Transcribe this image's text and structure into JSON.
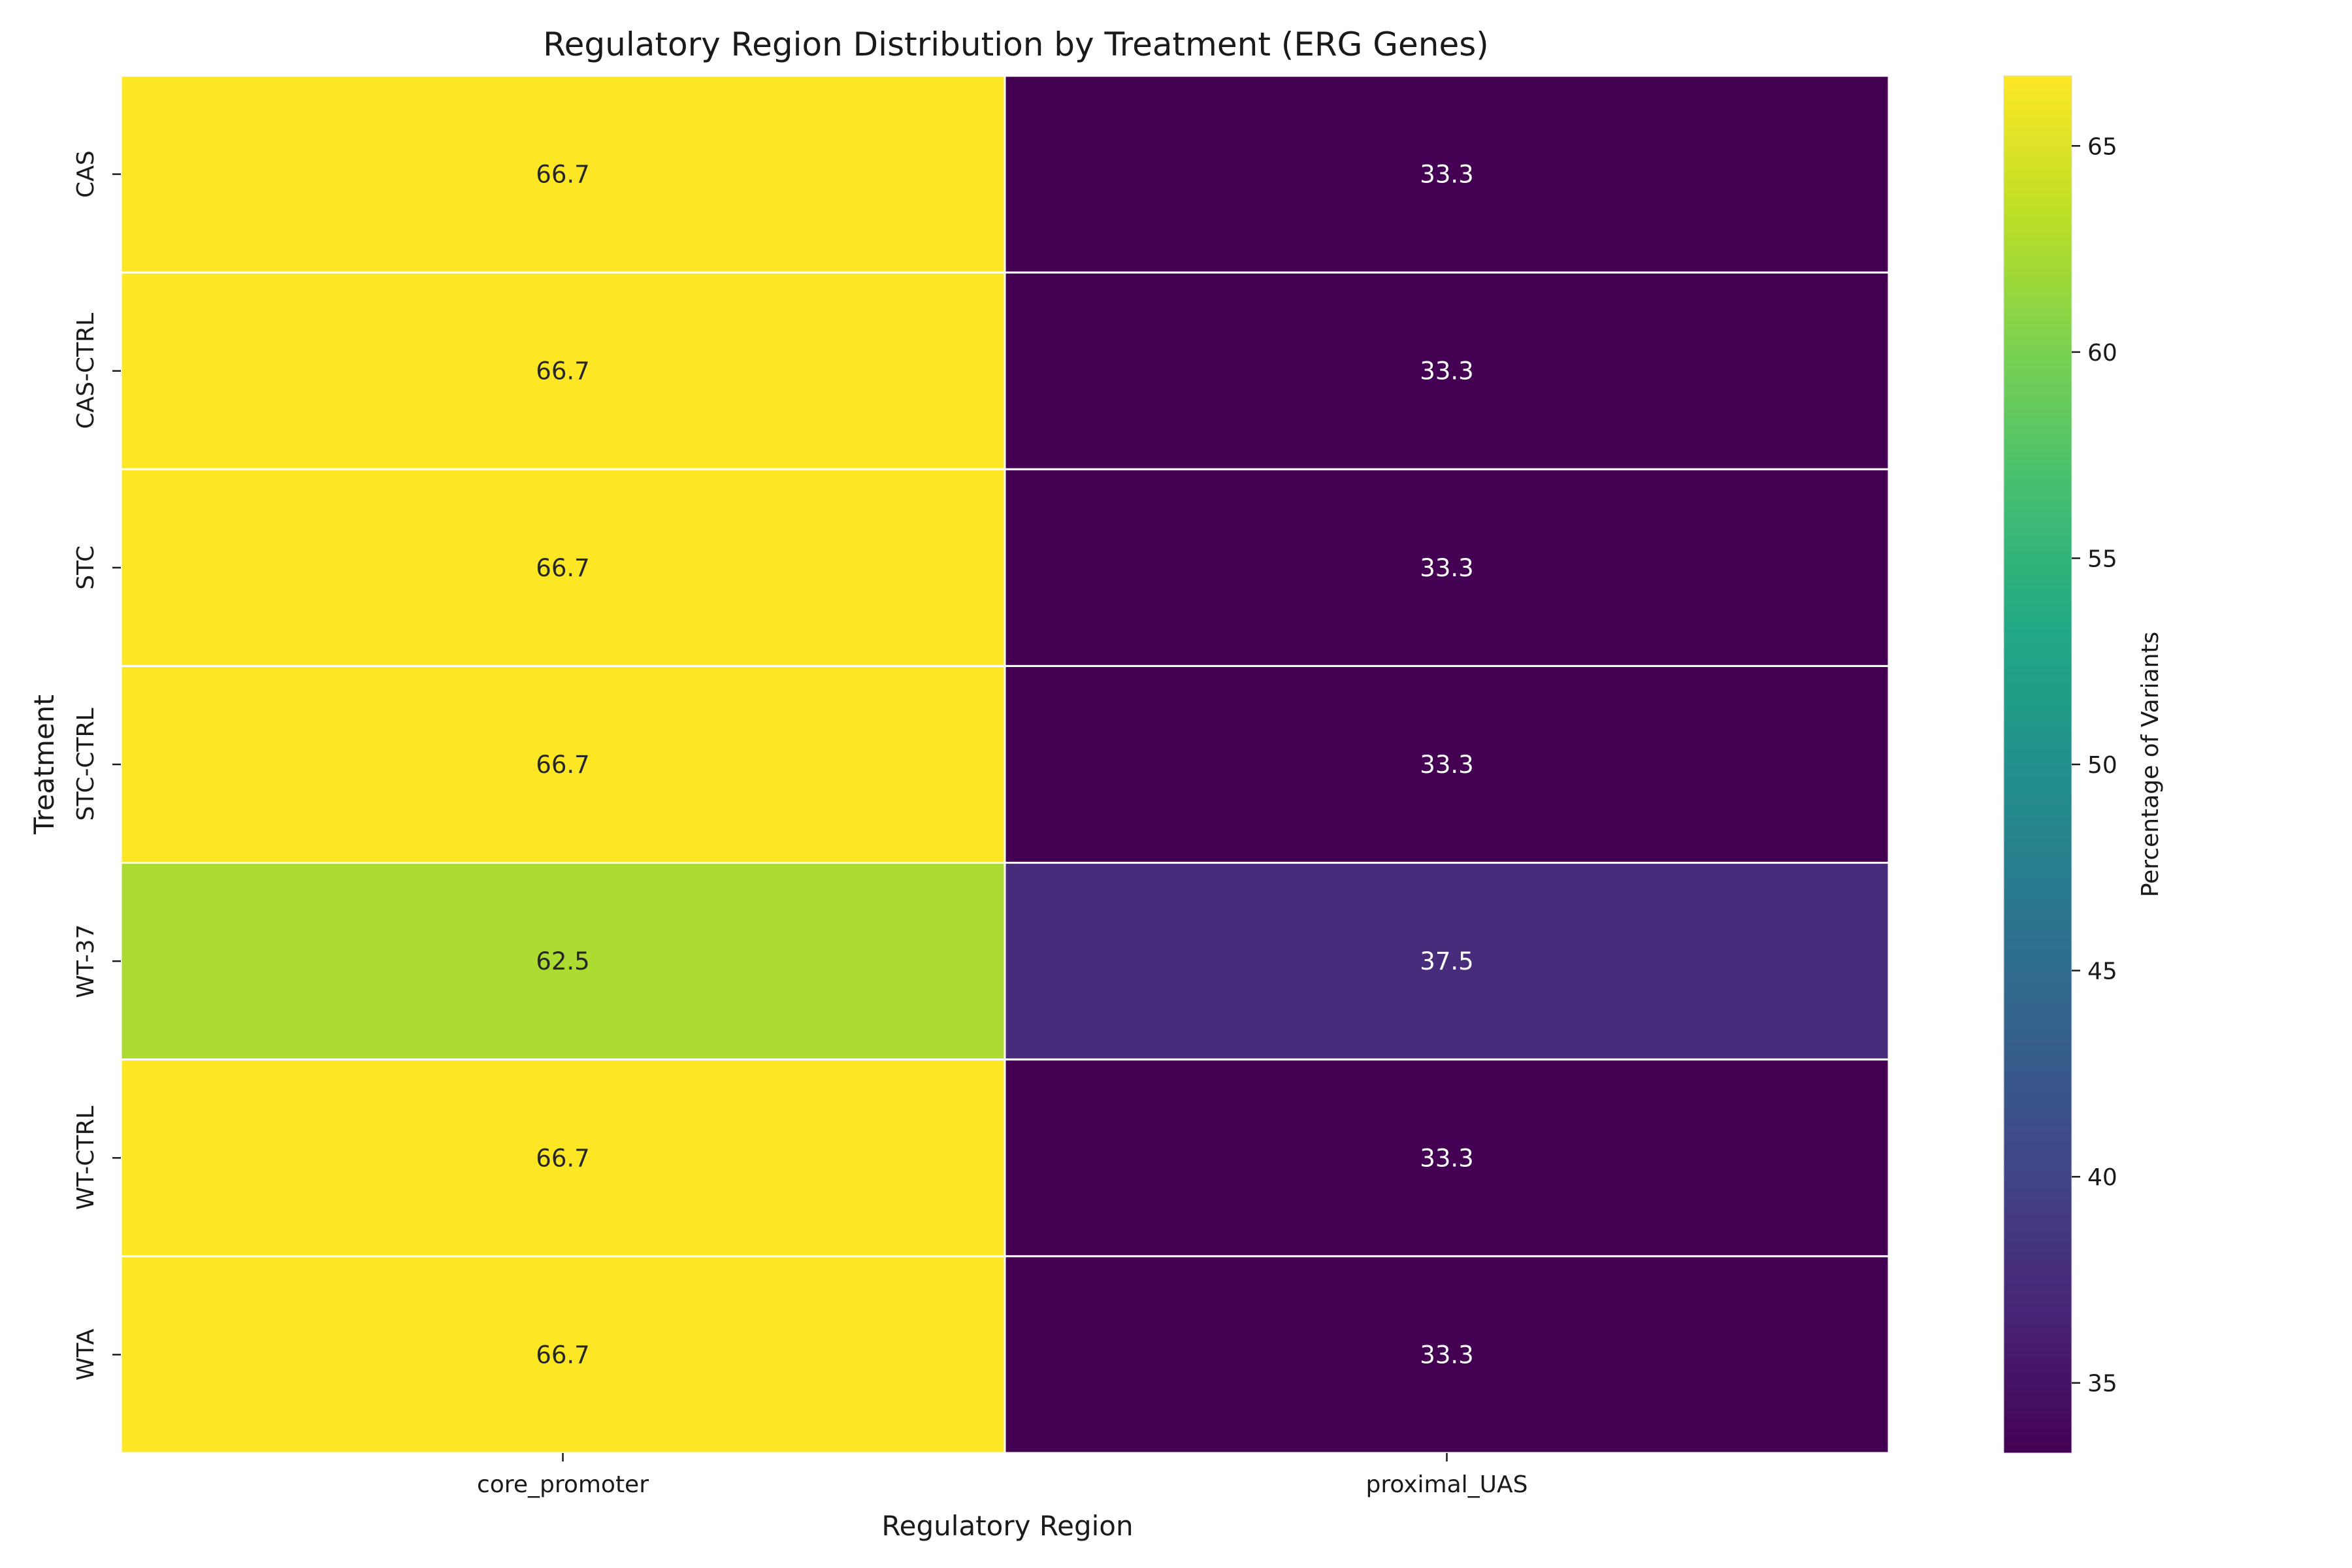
{
  "chart_data": {
    "type": "heatmap",
    "title": "Regulatory Region Distribution by Treatment (ERG Genes)",
    "xlabel": "Regulatory Region",
    "ylabel": "Treatment",
    "x_categories": [
      "core_promoter",
      "proximal_UAS"
    ],
    "y_categories": [
      "CAS",
      "CAS-CTRL",
      "STC",
      "STC-CTRL",
      "WT-37",
      "WT-CTRL",
      "WTA"
    ],
    "values": [
      [
        66.7,
        33.3
      ],
      [
        66.7,
        33.3
      ],
      [
        66.7,
        33.3
      ],
      [
        66.7,
        33.3
      ],
      [
        62.5,
        37.5
      ],
      [
        66.7,
        33.3
      ],
      [
        66.7,
        33.3
      ]
    ],
    "value_format": "0.1f",
    "colormap": "viridis",
    "colorbar": {
      "label": "Percentage of Variants",
      "range": [
        33.3,
        66.7
      ],
      "ticks": [
        35,
        40,
        45,
        50,
        55,
        60,
        65
      ]
    },
    "grid_line_color": "#ffffff",
    "annotation_colors": {
      "light_cell": "#262626",
      "dark_cell": "#ffffff"
    }
  }
}
